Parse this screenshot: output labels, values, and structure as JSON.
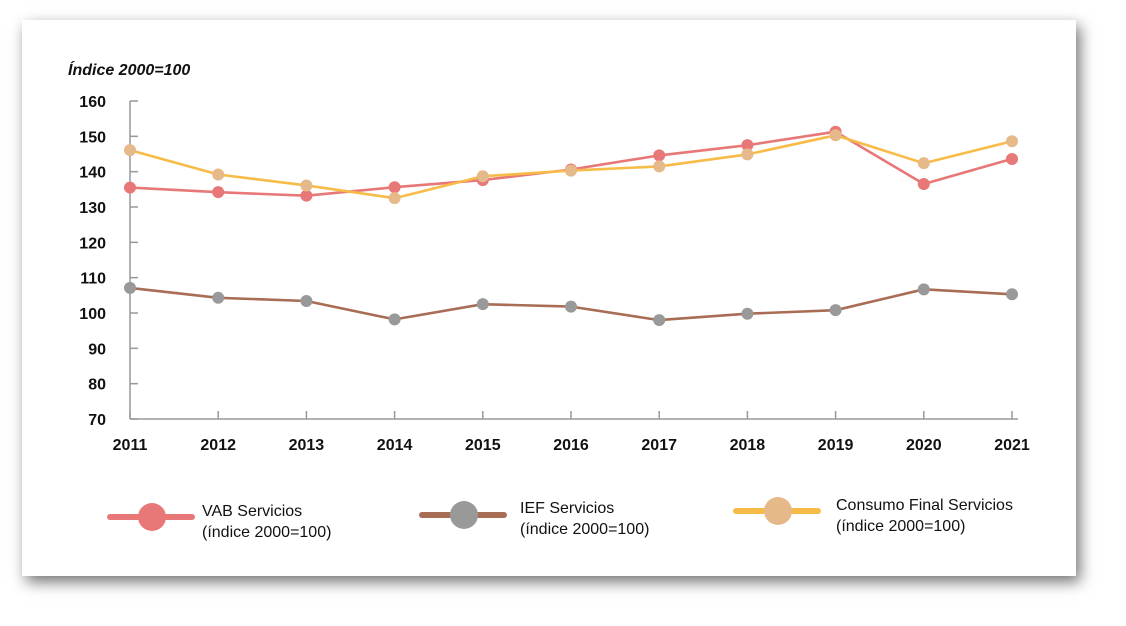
{
  "chart_data": {
    "type": "line",
    "ylabel": "Índice 2000=100",
    "ylim": [
      70,
      160
    ],
    "yticks": [
      70,
      80,
      90,
      100,
      110,
      120,
      130,
      140,
      150,
      160
    ],
    "categories": [
      "2011",
      "2012",
      "2013",
      "2014",
      "2015",
      "2016",
      "2017",
      "2018",
      "2019",
      "2020",
      "2021"
    ],
    "grid": false,
    "legend_position": "bottom",
    "series": [
      {
        "key": "vab",
        "name": "VAB Servicios",
        "name_sub": "(índice 2000=100)",
        "line_color": "#e87878",
        "marker_color": "#e87878",
        "values": [
          135.5,
          134.2,
          133.2,
          135.6,
          137.6,
          140.6,
          144.6,
          147.5,
          151.3,
          136.5,
          143.6
        ]
      },
      {
        "key": "ief",
        "name": "IEF Servicios",
        "name_sub": "(índice 2000=100)",
        "line_color": "#a96d55",
        "marker_color": "#999999",
        "values": [
          107.1,
          104.3,
          103.4,
          98.2,
          102.5,
          101.8,
          98.0,
          99.8,
          100.8,
          106.7,
          105.3
        ]
      },
      {
        "key": "cfs",
        "name": "Consumo Final Servicios",
        "name_sub": "(índice 2000=100)",
        "line_color": "#f7bb48",
        "marker_color": "#e6b98a",
        "values": [
          146.1,
          139.2,
          136.1,
          132.5,
          138.7,
          140.3,
          141.5,
          144.9,
          150.3,
          142.4,
          148.6
        ]
      }
    ]
  }
}
